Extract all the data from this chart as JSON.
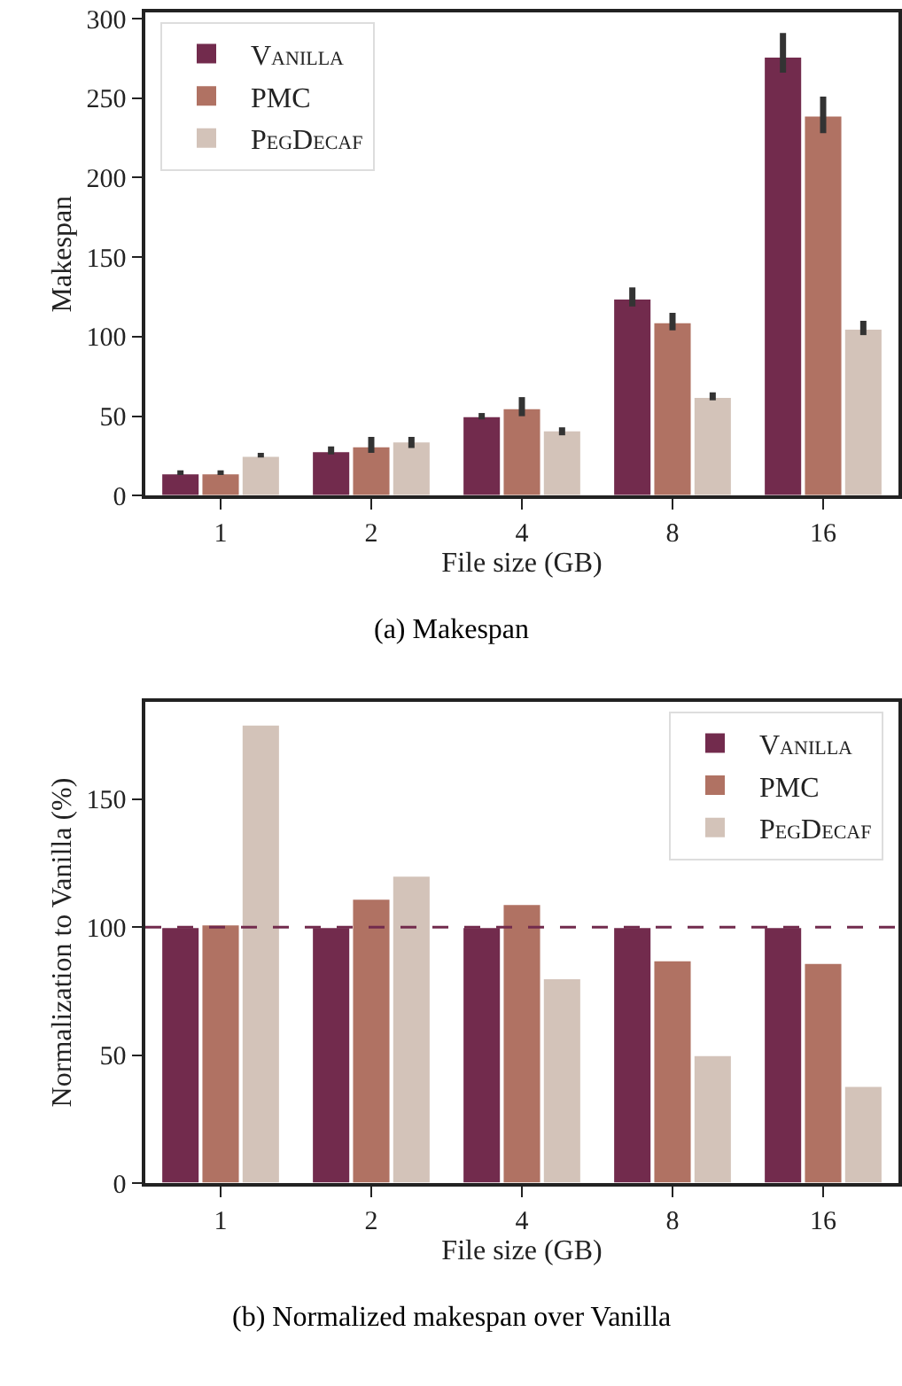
{
  "chart_data": [
    {
      "type": "bar",
      "title": "(a) Makespan",
      "xlabel": "File size (GB)",
      "ylabel": "Makespan",
      "categories": [
        "1",
        "2",
        "4",
        "8",
        "16"
      ],
      "ylim": [
        0,
        304
      ],
      "yticks": [
        0,
        50,
        100,
        150,
        200,
        250,
        300
      ],
      "legend": "top left",
      "series": [
        {
          "name": "Vanilla",
          "color": "#722b4d",
          "values": [
            14,
            28,
            50,
            124,
            276
          ],
          "errors": [
            [
              13,
              16
            ],
            [
              26,
              31
            ],
            [
              48,
              52
            ],
            [
              119,
              131
            ],
            [
              266,
              291
            ]
          ]
        },
        {
          "name": "PMC",
          "color": "#b07263",
          "values": [
            14,
            31,
            55,
            109,
            239
          ],
          "errors": [
            [
              13,
              16
            ],
            [
              27,
              37
            ],
            [
              50,
              62
            ],
            [
              104,
              115
            ],
            [
              228,
              251
            ]
          ]
        },
        {
          "name": "PegDecaf",
          "color": "#d3c3b9",
          "values": [
            25,
            34,
            41,
            62,
            105
          ],
          "errors": [
            [
              24,
              27
            ],
            [
              30,
              37
            ],
            [
              38,
              43
            ],
            [
              60,
              65
            ],
            [
              101,
              110
            ]
          ]
        }
      ]
    },
    {
      "type": "bar",
      "title": "(b) Normalized makespan over Vanilla",
      "xlabel": "File size (GB)",
      "ylabel": "Normalization to Vanilla (%)",
      "categories": [
        "1",
        "2",
        "4",
        "8",
        "16"
      ],
      "ylim": [
        0,
        188
      ],
      "yticks": [
        0,
        50,
        100,
        150
      ],
      "legend": "top right",
      "ref_lines": [
        {
          "axis": "y",
          "value": 100,
          "color": "#722b4d",
          "line_style": "dashed"
        }
      ],
      "series": [
        {
          "name": "Vanilla",
          "color": "#722b4d",
          "values": [
            100,
            100,
            100,
            100,
            100
          ]
        },
        {
          "name": "PMC",
          "color": "#b07263",
          "values": [
            101,
            111,
            109,
            87,
            86
          ]
        },
        {
          "name": "PegDecaf",
          "color": "#d3c3b9",
          "values": [
            179,
            120,
            80,
            50,
            38
          ]
        }
      ]
    }
  ]
}
